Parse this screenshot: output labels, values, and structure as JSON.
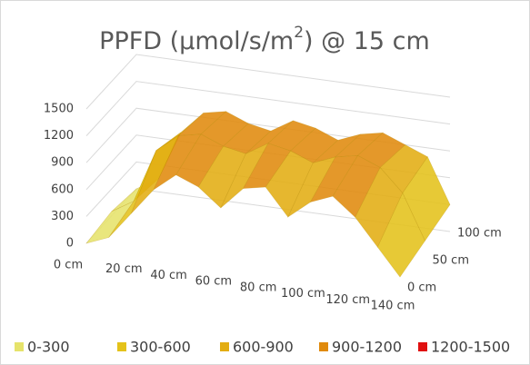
{
  "chart_data": {
    "type": "surface",
    "title": {
      "text": "PPFD (µmol/s/m",
      "sup": "2",
      "tail": ") @ 15 cm"
    },
    "categories": [
      "0 cm",
      null,
      "20 cm",
      null,
      "40 cm",
      null,
      "60 cm",
      null,
      "80 cm",
      null,
      "100 cm",
      null,
      "120 cm",
      null,
      "140 cm"
    ],
    "depth_categories": [
      "0 cm",
      "50 cm",
      "100 cm"
    ],
    "z": [
      [
        0,
        100,
        400,
        700,
        900,
        800,
        600,
        850,
        900,
        600,
        800,
        900,
        700,
        400,
        100
      ],
      [
        50,
        200,
        800,
        1000,
        1050,
        950,
        900,
        1050,
        1000,
        900,
        1000,
        1050,
        950,
        700,
        200
      ],
      [
        0,
        150,
        700,
        950,
        1000,
        900,
        850,
        1000,
        950,
        850,
        950,
        1000,
        900,
        800,
        300
      ]
    ],
    "zlim": [
      0,
      1500
    ],
    "zticks": [
      0,
      300,
      600,
      900,
      1200,
      1500
    ],
    "grid": true,
    "legend_position": "bottom",
    "bands": [
      {
        "label": "0-300",
        "color": "#e6e36b",
        "range": [
          0,
          300
        ]
      },
      {
        "label": "300-600",
        "color": "#e4c21a",
        "range": [
          300,
          600
        ]
      },
      {
        "label": "600-900",
        "color": "#e3ad12",
        "range": [
          600,
          900
        ]
      },
      {
        "label": "900-1200",
        "color": "#e08a0c",
        "range": [
          900,
          1200
        ]
      },
      {
        "label": "1200-1500",
        "color": "#e01010",
        "range": [
          1200,
          1500
        ]
      }
    ]
  }
}
